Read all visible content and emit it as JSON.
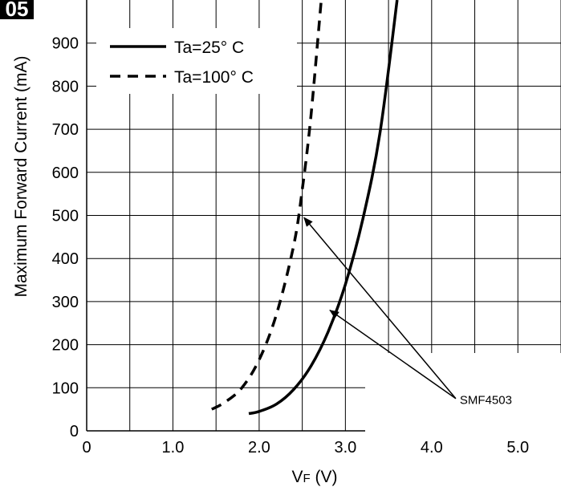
{
  "figure_badge": "05",
  "chart_data": {
    "type": "line",
    "title": "",
    "xlabel": "VF (V)",
    "xlabel_main": "V",
    "xlabel_sub": "F",
    "xlabel_unit": " (V)",
    "ylabel": "Maximum Forward Current (mA)",
    "xlim": [
      0,
      5.5
    ],
    "ylim": [
      0,
      1000
    ],
    "grid": true,
    "x_ticks": [
      0,
      0.5,
      1.0,
      1.5,
      2.0,
      2.5,
      3.0,
      3.5,
      4.0,
      4.5,
      5.0,
      5.5
    ],
    "x_tick_labels": [
      {
        "value": 0,
        "label": "0"
      },
      {
        "value": 1.0,
        "label": "1.0"
      },
      {
        "value": 2.0,
        "label": "2.0"
      },
      {
        "value": 3.0,
        "label": "3.0"
      },
      {
        "value": 4.0,
        "label": "4.0"
      },
      {
        "value": 5.0,
        "label": "5.0"
      }
    ],
    "y_ticks": [
      0,
      100,
      200,
      300,
      400,
      500,
      600,
      700,
      800,
      900
    ],
    "y_tick_labels": [
      "0",
      "100",
      "200",
      "300",
      "400",
      "500",
      "600",
      "700",
      "800",
      "900"
    ],
    "legend_position": "top-left",
    "series": [
      {
        "name": "Ta=25° C",
        "style": "solid",
        "color": "#000000",
        "points": [
          [
            1.88,
            40
          ],
          [
            2.0,
            45
          ],
          [
            2.2,
            62
          ],
          [
            2.4,
            96
          ],
          [
            2.6,
            150
          ],
          [
            2.8,
            230
          ],
          [
            3.0,
            340
          ],
          [
            3.2,
            490
          ],
          [
            3.4,
            690
          ],
          [
            3.6,
            1000
          ]
        ]
      },
      {
        "name": "Ta=100° C",
        "style": "dashed",
        "color": "#000000",
        "points": [
          [
            1.45,
            50
          ],
          [
            1.6,
            66
          ],
          [
            1.8,
            100
          ],
          [
            2.0,
            165
          ],
          [
            2.2,
            270
          ],
          [
            2.4,
            430
          ],
          [
            2.5,
            560
          ],
          [
            2.6,
            730
          ],
          [
            2.72,
            1000
          ]
        ]
      }
    ],
    "annotation": {
      "text": "SMF4503",
      "anchor": [
        4.28,
        75
      ],
      "arrow_targets": [
        [
          2.52,
          495
        ],
        [
          2.82,
          280
        ]
      ]
    }
  }
}
